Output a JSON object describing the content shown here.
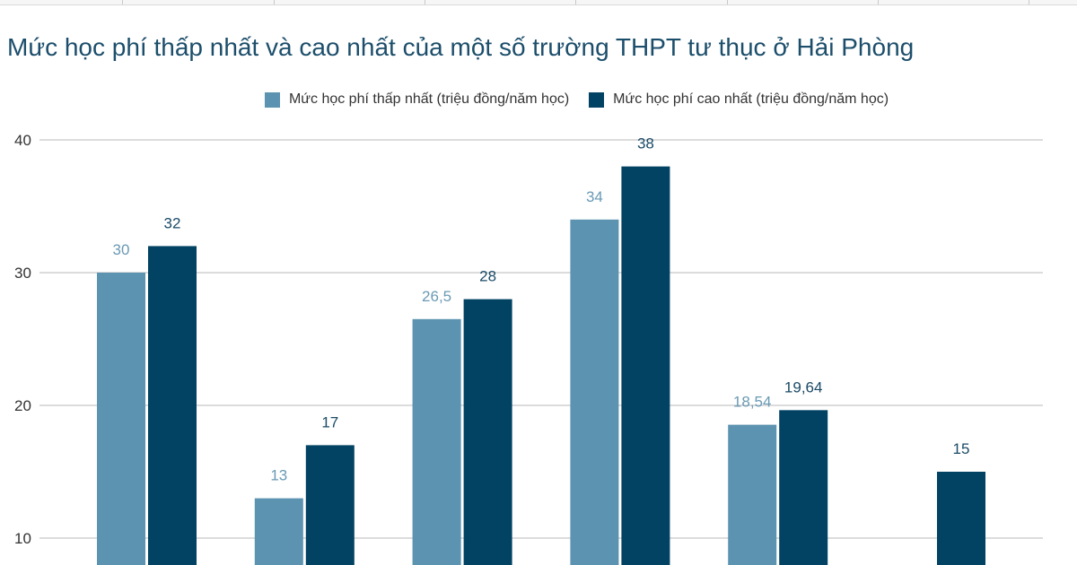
{
  "chart_data": {
    "type": "bar",
    "title": "Mức học phí thấp nhất và cao nhất của một số trường THPT tư thục ở Hải Phòng",
    "categories": [
      "",
      "",
      "",
      "",
      "",
      ""
    ],
    "series": [
      {
        "name": "Mức học phí thấp nhất (triệu đồng/năm học)",
        "color": "#5b93b0",
        "values": [
          30,
          13,
          26.5,
          34,
          18.54,
          null
        ],
        "labels": [
          "30",
          "13",
          "26,5",
          "34",
          "18,54",
          ""
        ]
      },
      {
        "name": "Mức học phí cao nhất (triệu đồng/năm học)",
        "color": "#024262",
        "values": [
          32,
          17,
          28,
          38,
          19.64,
          15
        ],
        "labels": [
          "32",
          "17",
          "28",
          "38",
          "19,64",
          "15"
        ]
      }
    ],
    "yticks": [
      "10",
      "20",
      "30",
      "40"
    ],
    "ytick_values": [
      10,
      20,
      30,
      40
    ],
    "ylim": [
      10,
      40
    ],
    "grid": true,
    "legend": "top"
  }
}
